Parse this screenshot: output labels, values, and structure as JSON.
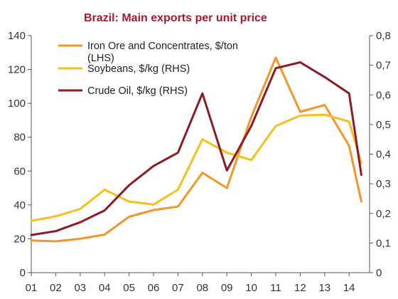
{
  "chart_data": {
    "type": "line",
    "title": "Brazil: Main exports per unit price",
    "categories": [
      "01",
      "02",
      "03",
      "04",
      "05",
      "06",
      "07",
      "08",
      "09",
      "10",
      "11",
      "12",
      "13",
      "14"
    ],
    "x": [
      1,
      2,
      3,
      4,
      5,
      6,
      7,
      8,
      9,
      10,
      11,
      12,
      13,
      14,
      14.5
    ],
    "y_left": {
      "ylim": [
        0,
        140
      ],
      "ticks": [
        "0",
        "20",
        "40",
        "60",
        "80",
        "100",
        "120",
        "140"
      ]
    },
    "y_right": {
      "ylim": [
        0,
        0.8
      ],
      "ticks": [
        "0",
        "0,1",
        "0,2",
        "0,3",
        "0,4",
        "0,5",
        "0,6",
        "0,7",
        "0,8"
      ]
    },
    "grid": false,
    "legend_position": "top-left",
    "series": [
      {
        "name": "Iron Ore and Concentrates, $/ton",
        "name_line2": "(LHS)",
        "axis": "left",
        "color": "#F0962C",
        "values": [
          19,
          18.5,
          20,
          22.5,
          33,
          37,
          39,
          59,
          50,
          92,
          127,
          95,
          99,
          75,
          42
        ]
      },
      {
        "name": "Soybeans, $/kg (RHS)",
        "axis": "right",
        "color": "#F6BF1C",
        "values": [
          0.175,
          0.19,
          0.215,
          0.28,
          0.24,
          0.23,
          0.28,
          0.45,
          0.405,
          0.38,
          0.495,
          0.53,
          0.533,
          0.51,
          0.37
        ]
      },
      {
        "name": "Crude Oil, $/kg (RHS)",
        "axis": "right",
        "color": "#8B1C24",
        "values": [
          0.127,
          0.14,
          0.17,
          0.21,
          0.295,
          0.36,
          0.405,
          0.605,
          0.345,
          0.495,
          0.69,
          0.71,
          0.66,
          0.605,
          0.33
        ]
      }
    ],
    "colors": {
      "title": "#A6192E",
      "axis": "#555555"
    }
  }
}
